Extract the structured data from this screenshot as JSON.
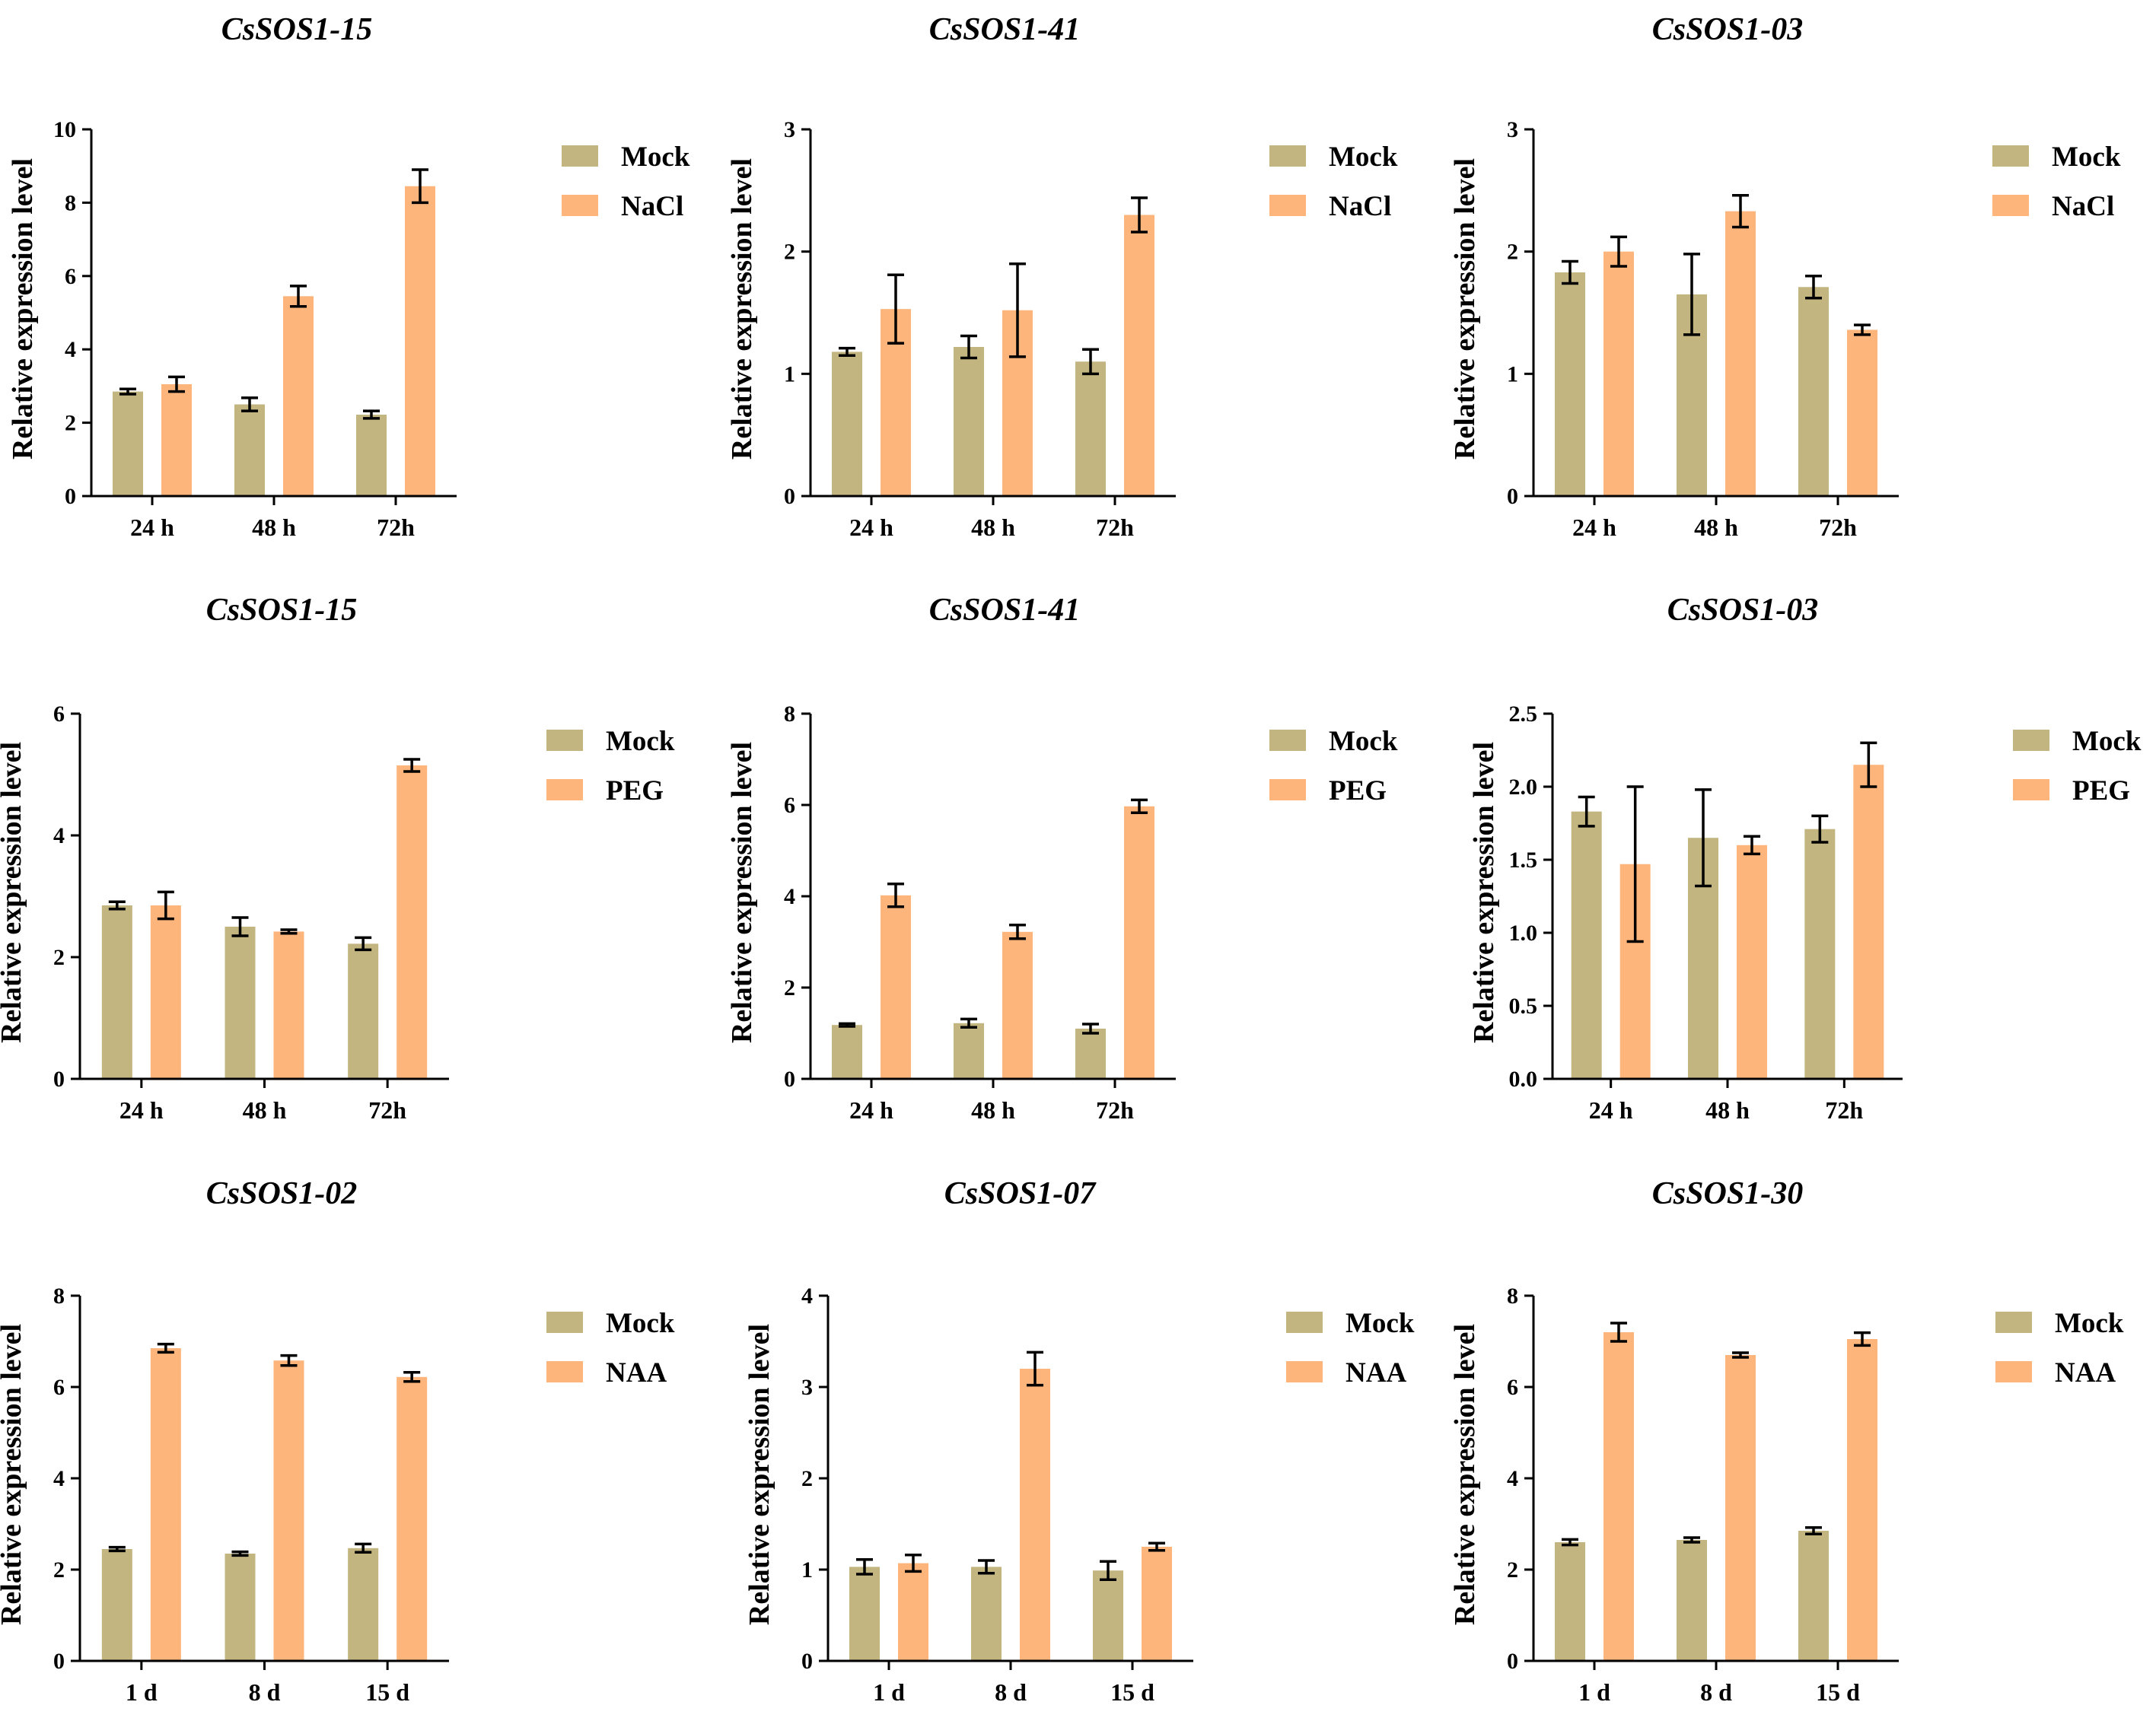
{
  "colors": {
    "mock": "#c2b580",
    "treatment": "#fdb57b",
    "axis": "#000000"
  },
  "chart_data": [
    {
      "type": "bar",
      "title": "CsSOS1-15",
      "xlabel": "",
      "ylabel": "Relative expression level",
      "categories": [
        "24 h",
        "48 h",
        "72h"
      ],
      "ylim": [
        0,
        10
      ],
      "yticks": [
        "0",
        "2",
        "4",
        "6",
        "8",
        "10"
      ],
      "series": [
        {
          "name": "Mock",
          "values": [
            2.85,
            2.5,
            2.22
          ],
          "errors": [
            0.07,
            0.18,
            0.1
          ]
        },
        {
          "name": "NaCl",
          "values": [
            3.05,
            5.45,
            8.45
          ],
          "errors": [
            0.2,
            0.28,
            0.45
          ]
        }
      ]
    },
    {
      "type": "bar",
      "title": "CsSOS1-41",
      "xlabel": "",
      "ylabel": "Relative expression level",
      "categories": [
        "24 h",
        "48 h",
        "72h"
      ],
      "ylim": [
        0,
        3
      ],
      "yticks": [
        "0",
        "1",
        "2",
        "3"
      ],
      "series": [
        {
          "name": "Mock",
          "values": [
            1.18,
            1.22,
            1.1
          ],
          "errors": [
            0.03,
            0.09,
            0.1
          ]
        },
        {
          "name": "NaCl",
          "values": [
            1.53,
            1.52,
            2.3
          ],
          "errors": [
            0.28,
            0.38,
            0.14
          ]
        }
      ]
    },
    {
      "type": "bar",
      "title": "CsSOS1-03",
      "xlabel": "",
      "ylabel": "Relative expression level",
      "categories": [
        "24 h",
        "48 h",
        "72h"
      ],
      "ylim": [
        0,
        3
      ],
      "yticks": [
        "0",
        "1",
        "2",
        "3"
      ],
      "series": [
        {
          "name": "Mock",
          "values": [
            1.83,
            1.65,
            1.71
          ],
          "errors": [
            0.09,
            0.33,
            0.09
          ]
        },
        {
          "name": "NaCl",
          "values": [
            2.0,
            2.33,
            1.36
          ],
          "errors": [
            0.12,
            0.13,
            0.04
          ]
        }
      ]
    },
    {
      "type": "bar",
      "title": "CsSOS1-15",
      "xlabel": "",
      "ylabel": "Relative expression level",
      "categories": [
        "24 h",
        "48 h",
        "72h"
      ],
      "ylim": [
        0,
        6
      ],
      "yticks": [
        "0",
        "2",
        "4",
        "6"
      ],
      "series": [
        {
          "name": "Mock",
          "values": [
            2.85,
            2.5,
            2.22
          ],
          "errors": [
            0.06,
            0.15,
            0.1
          ]
        },
        {
          "name": "PEG",
          "values": [
            2.85,
            2.42,
            5.15
          ],
          "errors": [
            0.22,
            0.03,
            0.1
          ]
        }
      ]
    },
    {
      "type": "bar",
      "title": "CsSOS1-41",
      "xlabel": "",
      "ylabel": "Relative expression level",
      "categories": [
        "24 h",
        "48 h",
        "72h"
      ],
      "ylim": [
        0,
        8
      ],
      "yticks": [
        "0",
        "2",
        "4",
        "6",
        "8"
      ],
      "series": [
        {
          "name": "Mock",
          "values": [
            1.18,
            1.22,
            1.1
          ],
          "errors": [
            0.03,
            0.09,
            0.1
          ]
        },
        {
          "name": "PEG",
          "values": [
            4.02,
            3.22,
            5.97
          ],
          "errors": [
            0.25,
            0.15,
            0.14
          ]
        }
      ]
    },
    {
      "type": "bar",
      "title": "CsSOS1-03",
      "xlabel": "",
      "ylabel": "Relative expression level",
      "categories": [
        "24 h",
        "48 h",
        "72h"
      ],
      "ylim": [
        0,
        2.5
      ],
      "yticks": [
        "0.0",
        "0.5",
        "1.0",
        "1.5",
        "2.0",
        "2.5"
      ],
      "series": [
        {
          "name": "Mock",
          "values": [
            1.83,
            1.65,
            1.71
          ],
          "errors": [
            0.1,
            0.33,
            0.09
          ]
        },
        {
          "name": "PEG",
          "values": [
            1.47,
            1.6,
            2.15
          ],
          "errors": [
            0.53,
            0.06,
            0.15
          ]
        }
      ]
    },
    {
      "type": "bar",
      "title": "CsSOS1-02",
      "xlabel": "",
      "ylabel": "Relative expression level",
      "categories": [
        "1 d",
        "8 d",
        "15 d"
      ],
      "ylim": [
        0,
        8
      ],
      "yticks": [
        "0",
        "2",
        "4",
        "6",
        "8"
      ],
      "series": [
        {
          "name": "Mock",
          "values": [
            2.45,
            2.35,
            2.47
          ],
          "errors": [
            0.04,
            0.04,
            0.09
          ]
        },
        {
          "name": "NAA",
          "values": [
            6.85,
            6.58,
            6.22
          ],
          "errors": [
            0.09,
            0.11,
            0.1
          ]
        }
      ]
    },
    {
      "type": "bar",
      "title": "CsSOS1-07",
      "xlabel": "",
      "ylabel": "Relative expression level",
      "categories": [
        "1 d",
        "8 d",
        "15 d"
      ],
      "ylim": [
        0,
        4
      ],
      "yticks": [
        "0",
        "1",
        "2",
        "3",
        "4"
      ],
      "series": [
        {
          "name": "Mock",
          "values": [
            1.03,
            1.03,
            0.99
          ],
          "errors": [
            0.08,
            0.07,
            0.1
          ]
        },
        {
          "name": "NAA",
          "values": [
            1.07,
            3.2,
            1.25
          ],
          "errors": [
            0.09,
            0.18,
            0.04
          ]
        }
      ]
    },
    {
      "type": "bar",
      "title": "CsSOS1-30",
      "xlabel": "",
      "ylabel": "Relative expression level",
      "categories": [
        "1 d",
        "8 d",
        "15 d"
      ],
      "ylim": [
        0,
        8
      ],
      "yticks": [
        "0",
        "2",
        "4",
        "6",
        "8"
      ],
      "series": [
        {
          "name": "Mock",
          "values": [
            2.6,
            2.65,
            2.85
          ],
          "errors": [
            0.06,
            0.05,
            0.07
          ]
        },
        {
          "name": "NAA",
          "values": [
            7.2,
            6.7,
            7.05
          ],
          "errors": [
            0.2,
            0.05,
            0.14
          ]
        }
      ]
    }
  ]
}
